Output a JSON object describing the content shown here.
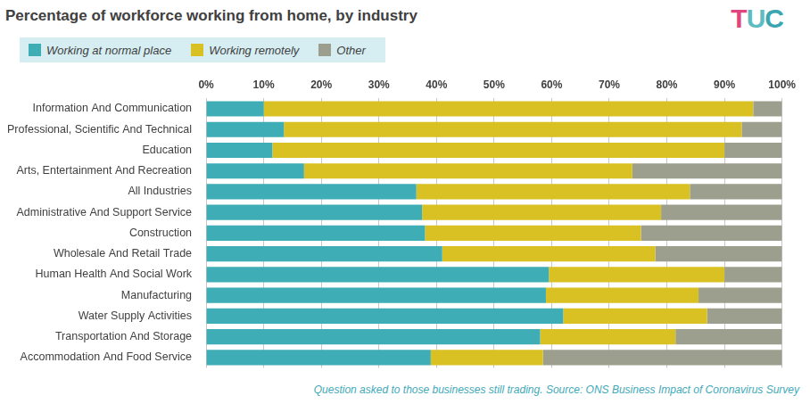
{
  "chart_data": {
    "type": "bar",
    "title": "Percentage of workforce working from home, by industry",
    "logo": "TUC",
    "footnote": "Question asked to those businesses still trading. Source: ONS Business Impact of Coronavirus Survey",
    "orientation": "horizontal",
    "stacked": true,
    "grid": true,
    "legend": "top-left",
    "categories": [
      "Information And Communication",
      "Professional, Scientific And Technical",
      "Education",
      "Arts, Entertainment And Recreation",
      "All Industries",
      "Administrative And Support Service",
      "Construction",
      "Wholesale And Retail Trade",
      "Human Health And Social Work",
      "Manufacturing",
      "Water Supply Activities",
      "Transportation And Storage",
      "Accommodation And Food Service"
    ],
    "series": [
      {
        "name": "Working at normal place",
        "color": "#3fadb5",
        "values": [
          10,
          13.5,
          11.5,
          17,
          36.5,
          37.5,
          38,
          41,
          59.5,
          59,
          62,
          58,
          39
        ]
      },
      {
        "name": "Working remotely",
        "color": "#d9c123",
        "values": [
          85,
          79.5,
          78.5,
          57,
          47.5,
          41.5,
          37.5,
          37,
          30.5,
          26.5,
          25,
          23.5,
          19.5
        ]
      },
      {
        "name": "Other",
        "color": "#9c9f8e",
        "values": [
          5,
          7,
          10,
          26,
          16,
          21,
          24.5,
          22,
          10,
          14.5,
          13,
          18.5,
          41.5
        ]
      }
    ],
    "xlim": [
      0,
      100
    ],
    "xticks": [
      {
        "value": 0,
        "label": "0%"
      },
      {
        "value": 10,
        "label": "10%"
      },
      {
        "value": 20,
        "label": "20%"
      },
      {
        "value": 30,
        "label": "30%"
      },
      {
        "value": 40,
        "label": "40%"
      },
      {
        "value": 50,
        "label": "50%"
      },
      {
        "value": 60,
        "label": "60%"
      },
      {
        "value": 70,
        "label": "70%"
      },
      {
        "value": 80,
        "label": "80%"
      },
      {
        "value": 90,
        "label": "90%"
      },
      {
        "value": 100,
        "label": "100%"
      }
    ]
  }
}
